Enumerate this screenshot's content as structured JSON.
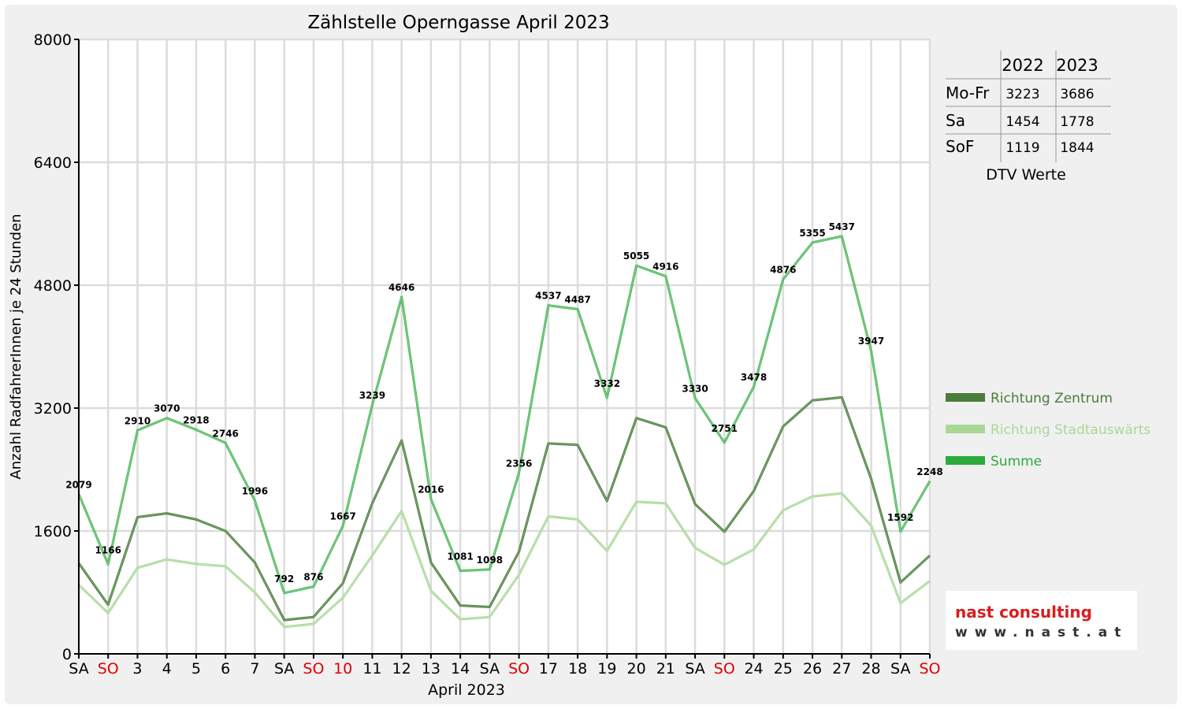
{
  "chart_data": {
    "type": "line",
    "title": "Zählstelle Operngasse April 2023",
    "ylabel": "Anzahl RadfahrerInnen je 24 Stunden",
    "xlabel": "April 2023",
    "ylim": [
      0,
      8000
    ],
    "yticks": [
      "0",
      "1600",
      "3200",
      "4800",
      "6400",
      "8000"
    ],
    "grid": true,
    "legend_position": "right",
    "categories": [
      "SA",
      "SO",
      "3",
      "4",
      "5",
      "6",
      "7",
      "SA",
      "SO",
      "10",
      "11",
      "12",
      "13",
      "14",
      "SA",
      "SO",
      "17",
      "18",
      "19",
      "20",
      "21",
      "SA",
      "SO",
      "24",
      "25",
      "26",
      "27",
      "28",
      "SA",
      "SO"
    ],
    "highlight_categories": [
      "SO",
      "10"
    ],
    "series": [
      {
        "name": "Richtung Zentrum",
        "color": "#4a7d3a",
        "values": [
          1180,
          640,
          1780,
          1830,
          1750,
          1600,
          1190,
          440,
          480,
          920,
          1960,
          2780,
          1190,
          630,
          610,
          1330,
          2740,
          2720,
          1990,
          3070,
          2950,
          1950,
          1590,
          2120,
          2960,
          3300,
          3340,
          2280,
          930,
          1280
        ]
      },
      {
        "name": "Richtung Stadtauswärts",
        "color": "#a9d896",
        "values": [
          900,
          530,
          1120,
          1230,
          1170,
          1140,
          800,
          350,
          390,
          730,
          1280,
          1860,
          820,
          450,
          480,
          1030,
          1790,
          1750,
          1340,
          1980,
          1960,
          1380,
          1160,
          1360,
          1870,
          2050,
          2090,
          1670,
          660,
          950
        ]
      },
      {
        "name": "Summe",
        "color": "#2daa3c",
        "values": [
          2079,
          1166,
          2910,
          3070,
          2918,
          2746,
          1996,
          792,
          876,
          1667,
          3239,
          4646,
          2016,
          1081,
          1098,
          2356,
          4537,
          4487,
          3332,
          5055,
          4916,
          3330,
          2751,
          3478,
          4876,
          5355,
          5437,
          3947,
          1592,
          2248
        ],
        "labels": [
          "2079",
          "1166",
          "2910",
          "3070",
          "2918",
          "2746",
          "1996",
          "792",
          "876",
          "1667",
          "3239",
          "4646",
          "2016",
          "1081",
          "1098",
          "2356",
          "4537",
          "4487",
          "3332",
          "5055",
          "4916",
          "3330",
          "2751",
          "3478",
          "4876",
          "5355",
          "5437",
          "3947",
          "1592",
          "2248"
        ]
      }
    ]
  },
  "dtv_table": {
    "caption": "DTV Werte",
    "headers": [
      "2022",
      "2023"
    ],
    "rows": [
      {
        "label": "Mo-Fr",
        "y2022": "3223",
        "y2023": "3686"
      },
      {
        "label": "Sa",
        "y2022": "1454",
        "y2023": "1778"
      },
      {
        "label": "SoF",
        "y2022": "1119",
        "y2023": "1844"
      }
    ]
  },
  "logo": {
    "line1": "nast consulting",
    "line2": "www.nast.at"
  }
}
